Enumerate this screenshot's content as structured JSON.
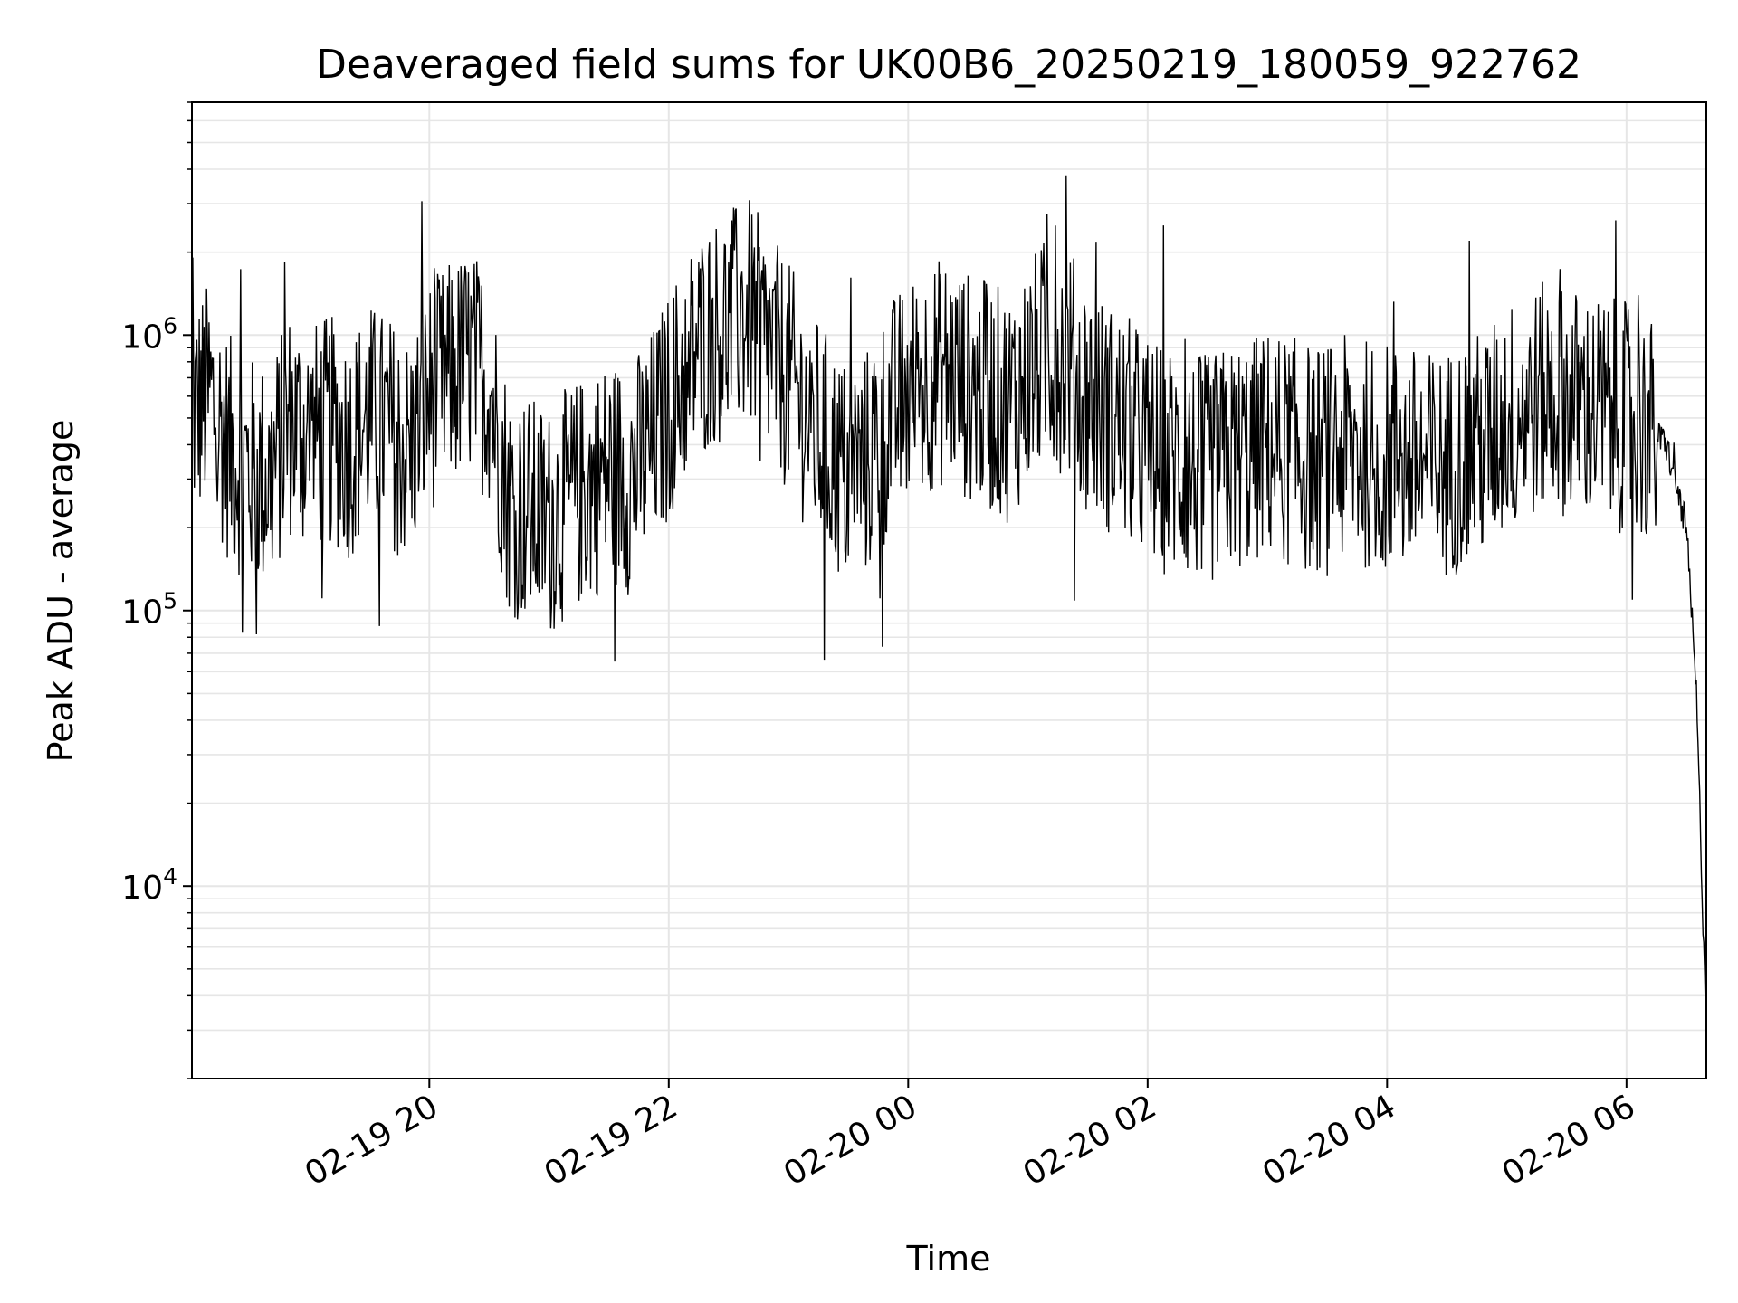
{
  "chart_data": {
    "type": "line",
    "title": "Deaveraged field sums for UK00B6_20250219_180059_922762",
    "xlabel": "Time",
    "ylabel": "Peak ADU - average",
    "y_scale": "log",
    "ylim": [
      2000,
      7000000
    ],
    "xlim": [
      "2025-02-19 18:01",
      "2025-02-20 06:40"
    ],
    "grid": true,
    "legend": "none",
    "line_color": "#000000",
    "grid_color": "#e6e6e6",
    "x_ticks": [
      {
        "value": "2025-02-19 20:00",
        "label": "02-19 20"
      },
      {
        "value": "2025-02-19 22:00",
        "label": "02-19 22"
      },
      {
        "value": "2025-02-20 00:00",
        "label": "02-20 00"
      },
      {
        "value": "2025-02-20 02:00",
        "label": "02-20 02"
      },
      {
        "value": "2025-02-20 04:00",
        "label": "02-20 04"
      },
      {
        "value": "2025-02-20 06:00",
        "label": "02-20 06"
      }
    ],
    "y_ticks": [
      {
        "value": 10000,
        "base": "10",
        "exp": "4"
      },
      {
        "value": 100000,
        "base": "10",
        "exp": "5"
      },
      {
        "value": 1000000,
        "base": "10",
        "exp": "6"
      }
    ],
    "series": [
      {
        "x": [
          "2025-02-19 18:01",
          "2025-02-19 18:10",
          "2025-02-19 18:20",
          "2025-02-19 18:30",
          "2025-02-19 18:40",
          "2025-02-19 18:50",
          "2025-02-19 19:00",
          "2025-02-19 19:10",
          "2025-02-19 19:20",
          "2025-02-19 19:30",
          "2025-02-19 19:40",
          "2025-02-19 19:50",
          "2025-02-19 20:00",
          "2025-02-19 20:10",
          "2025-02-19 20:20",
          "2025-02-19 20:30",
          "2025-02-19 20:40",
          "2025-02-19 20:50",
          "2025-02-19 21:00",
          "2025-02-19 21:10",
          "2025-02-19 21:20",
          "2025-02-19 21:30",
          "2025-02-19 21:40",
          "2025-02-19 21:50",
          "2025-02-19 22:00",
          "2025-02-19 22:10",
          "2025-02-19 22:20",
          "2025-02-19 22:30",
          "2025-02-19 22:40",
          "2025-02-19 22:50",
          "2025-02-19 23:00",
          "2025-02-19 23:10",
          "2025-02-19 23:20",
          "2025-02-19 23:30",
          "2025-02-19 23:40",
          "2025-02-19 23:50",
          "2025-02-20 00:00",
          "2025-02-20 00:10",
          "2025-02-20 00:20",
          "2025-02-20 00:30",
          "2025-02-20 00:40",
          "2025-02-20 00:50",
          "2025-02-20 01:00",
          "2025-02-20 01:10",
          "2025-02-20 01:20",
          "2025-02-20 01:30",
          "2025-02-20 01:40",
          "2025-02-20 01:50",
          "2025-02-20 02:00",
          "2025-02-20 02:10",
          "2025-02-20 02:20",
          "2025-02-20 02:30",
          "2025-02-20 02:40",
          "2025-02-20 02:50",
          "2025-02-20 03:00",
          "2025-02-20 03:10",
          "2025-02-20 03:20",
          "2025-02-20 03:30",
          "2025-02-20 03:40",
          "2025-02-20 03:50",
          "2025-02-20 04:00",
          "2025-02-20 04:10",
          "2025-02-20 04:20",
          "2025-02-20 04:30",
          "2025-02-20 04:40",
          "2025-02-20 04:50",
          "2025-02-20 05:00",
          "2025-02-20 05:10",
          "2025-02-20 05:20",
          "2025-02-20 05:30",
          "2025-02-20 05:40",
          "2025-02-20 05:50",
          "2025-02-20 06:00",
          "2025-02-20 06:10",
          "2025-02-20 06:20",
          "2025-02-20 06:30",
          "2025-02-20 06:35",
          "2025-02-20 06:40"
        ],
        "y": [
          520000,
          600000,
          380000,
          320000,
          300000,
          480000,
          420000,
          450000,
          400000,
          500000,
          450000,
          380000,
          600000,
          700000,
          800000,
          650000,
          250000,
          230000,
          210000,
          250000,
          280000,
          320000,
          300000,
          380000,
          550000,
          800000,
          1000000,
          1100000,
          1200000,
          900000,
          700000,
          500000,
          380000,
          300000,
          350000,
          500000,
          600000,
          700000,
          750000,
          650000,
          600000,
          550000,
          700000,
          900000,
          800000,
          600000,
          500000,
          450000,
          380000,
          350000,
          330000,
          320000,
          350000,
          370000,
          400000,
          380000,
          360000,
          350000,
          380000,
          370000,
          360000,
          350000,
          330000,
          340000,
          380000,
          400000,
          500000,
          550000,
          600000,
          580000,
          550000,
          520000,
          500000,
          450000,
          400000,
          200000,
          50000,
          3000
        ]
      }
    ]
  }
}
